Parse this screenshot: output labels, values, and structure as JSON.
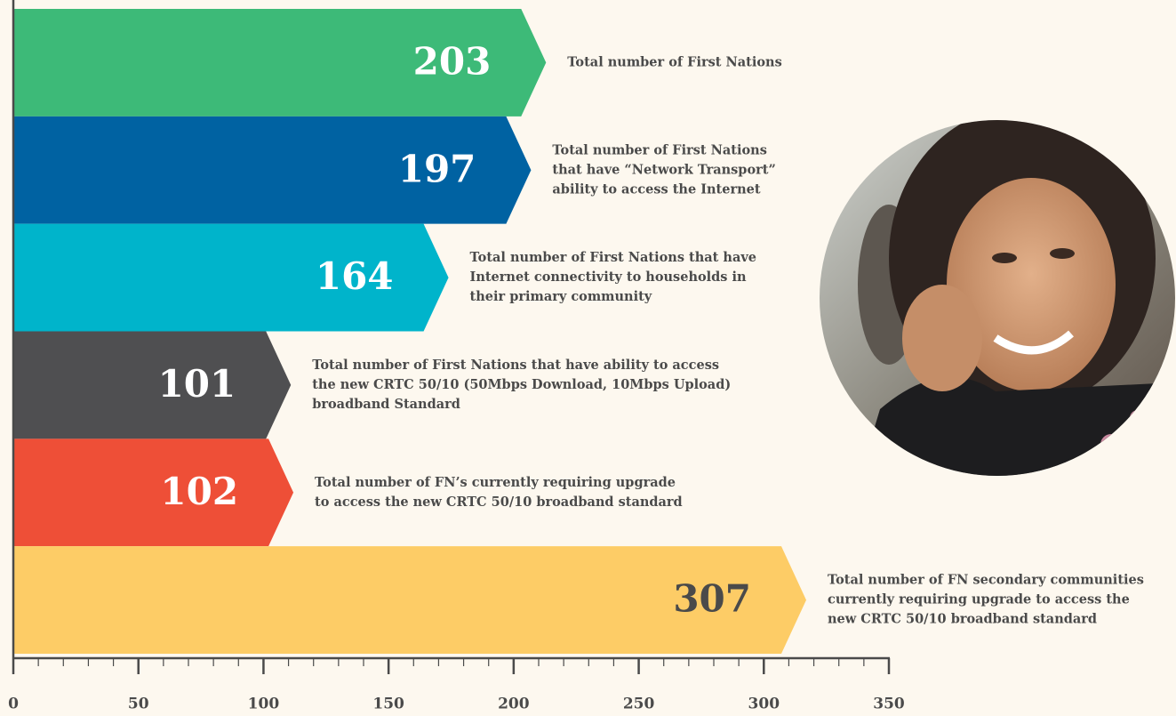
{
  "chart_data": {
    "type": "arrow-bar",
    "orientation": "horizontal",
    "values": [
      203,
      197,
      164,
      101,
      102,
      307
    ],
    "colors": [
      "#3dba78",
      "#0062a2",
      "#00b4cb",
      "#4f4f51",
      "#ee4f37",
      "#fdcc66"
    ],
    "value_label_colors": [
      "#ffffff",
      "#ffffff",
      "#ffffff",
      "#ffffff",
      "#ffffff",
      "#4a4a4a"
    ],
    "descriptions": [
      [
        "Total number of First Nations"
      ],
      [
        "Total number of First Nations",
        "that have “Network Transport”",
        "ability to access the Internet"
      ],
      [
        "Total number of First Nations that have",
        "Internet connectivity to households in",
        "their primary community"
      ],
      [
        "Total number of First Nations that have ability to access",
        "the new CRTC 50/10 (50Mbps Download, 10Mbps Upload)",
        "broadband Standard"
      ],
      [
        "Total number of FN’s currently requiring upgrade",
        "to access the new CRTC 50/10 broadband standard"
      ],
      [
        "Total number of FN secondary communities",
        "currently requiring upgrade to access the",
        "new CRTC 50/10 broadband standard"
      ]
    ],
    "xlim": [
      0,
      350
    ],
    "xticks": [
      0,
      50,
      100,
      150,
      200,
      250,
      300,
      350
    ],
    "xticks_minor": [
      10,
      20,
      30,
      40,
      60,
      70,
      80,
      90,
      110,
      120,
      130,
      140,
      160,
      170,
      180,
      190,
      210,
      220,
      230,
      240,
      260,
      270,
      280,
      290,
      310,
      320,
      330,
      340
    ]
  }
}
